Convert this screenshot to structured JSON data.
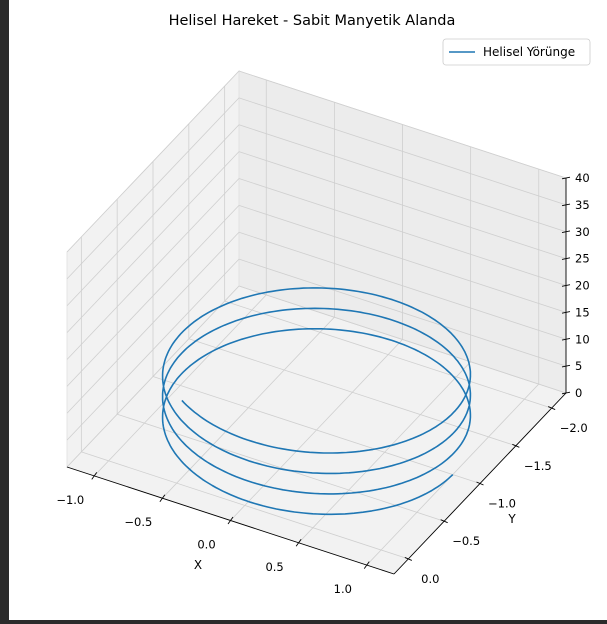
{
  "chart_data": {
    "type": "line",
    "projection": "3d",
    "title": "Helisel Hareket - Sabit Manyetik Alanda",
    "xlabel": "X",
    "ylabel": "Y",
    "zlabel": "",
    "xlim": [
      -1.2,
      1.2
    ],
    "ylim": [
      -2.2,
      0.2
    ],
    "zlim": [
      0,
      40
    ],
    "xticks": [
      "−1.0",
      "−0.5",
      "0.0",
      "0.5",
      "1.0"
    ],
    "xtick_values": [
      -1.0,
      -0.5,
      0.0,
      0.5,
      1.0
    ],
    "yticks": [
      "0.0",
      "−0.5",
      "−1.0",
      "−1.5",
      "−2.0"
    ],
    "ytick_values": [
      0.0,
      -0.5,
      -1.0,
      -1.5,
      -2.0
    ],
    "zticks": [
      "0",
      "5",
      "10",
      "15",
      "20",
      "25",
      "30",
      "35",
      "40"
    ],
    "ztick_values": [
      0,
      5,
      10,
      15,
      20,
      25,
      30,
      35,
      40
    ],
    "grid": true,
    "legend_position": "top-right",
    "series": [
      {
        "name": "Helisel Yörünge",
        "color": "#1f77b4",
        "parametric": {
          "x": "cos(t)",
          "y": "sin(t) - 1",
          "z": "3.8 * t / (2*pi)",
          "t_range": [
            0,
            21.0
          ]
        }
      }
    ]
  }
}
